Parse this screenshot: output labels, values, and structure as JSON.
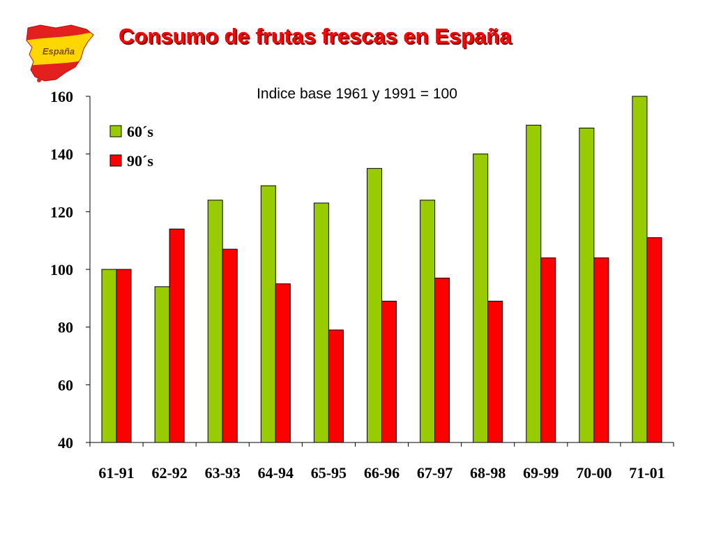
{
  "header": {
    "title": "Consumo de frutas frescas en España",
    "logo_text": "España"
  },
  "colors": {
    "title": "#ff0000",
    "series_60s": "#99cc00",
    "series_90s": "#ff0000",
    "axis": "#000000"
  },
  "chart_data": {
    "type": "bar",
    "title": "",
    "subtitle": "Indice base 1961 y 1991 = 100",
    "xlabel": "",
    "ylabel": "",
    "categories": [
      "61-91",
      "62-92",
      "63-93",
      "64-94",
      "65-95",
      "66-96",
      "67-97",
      "68-98",
      "69-99",
      "70-00",
      "71-01"
    ],
    "series": [
      {
        "name": "60´s",
        "color": "#99cc00",
        "values": [
          100,
          94,
          124,
          129,
          123,
          135,
          124,
          140,
          150,
          149,
          162
        ]
      },
      {
        "name": "90´s",
        "color": "#ff0000",
        "values": [
          100,
          114,
          107,
          95,
          79,
          89,
          97,
          89,
          104,
          104,
          111
        ]
      }
    ],
    "ylim": [
      40,
      160
    ],
    "yticks": [
      40,
      60,
      80,
      100,
      120,
      140,
      160
    ],
    "grid": false,
    "legend": "top-left"
  }
}
